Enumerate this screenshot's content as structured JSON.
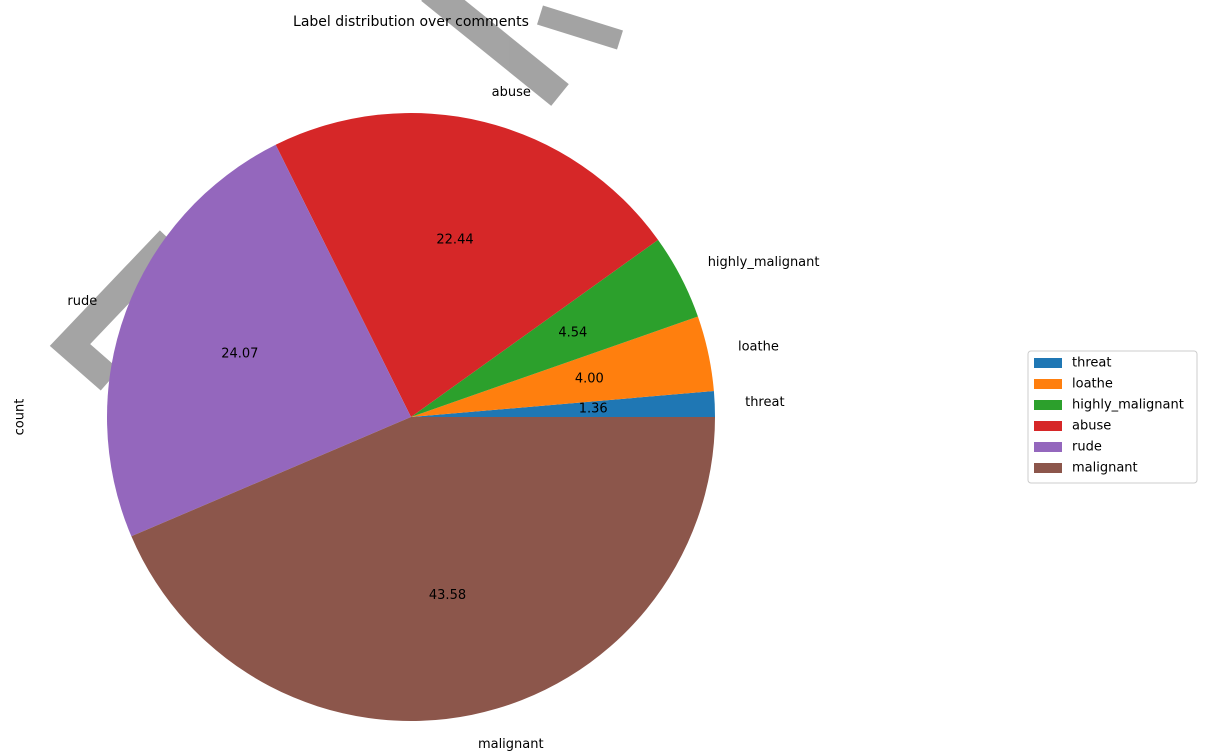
{
  "chart_data": {
    "type": "pie",
    "title": "Label distribution over comments",
    "ylabel": "count",
    "categories": [
      "threat",
      "loathe",
      "highly_malignant",
      "abuse",
      "rude",
      "malignant"
    ],
    "values": [
      1.36,
      4.0,
      4.54,
      22.44,
      24.07,
      43.58
    ],
    "value_labels": [
      "1.36",
      "4.00",
      "4.54",
      "22.44",
      "24.07",
      "43.58"
    ],
    "colors": [
      "#1f77b4",
      "#ff7f0e",
      "#2ca02c",
      "#d62728",
      "#9467bd",
      "#8c564b"
    ],
    "legend": "right"
  }
}
